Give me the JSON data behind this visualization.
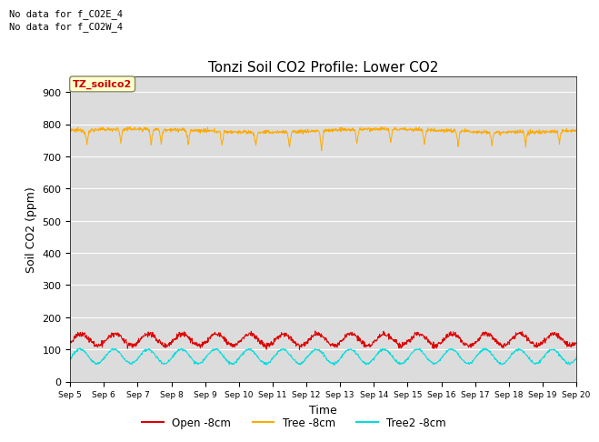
{
  "title": "Tonzi Soil CO2 Profile: Lower CO2",
  "xlabel": "Time",
  "ylabel": "Soil CO2 (ppm)",
  "ylim": [
    0,
    950
  ],
  "yticks": [
    0,
    100,
    200,
    300,
    400,
    500,
    600,
    700,
    800,
    900
  ],
  "xtick_labels": [
    "Sep 5",
    "Sep 6",
    "Sep 7",
    "Sep 8",
    "Sep 9",
    "Sep 10",
    "Sep 11",
    "Sep 12",
    "Sep 13",
    "Sep 14",
    "Sep 15",
    "Sep 16",
    "Sep 17",
    "Sep 18",
    "Sep 19",
    "Sep 20"
  ],
  "no_data_text": [
    "No data for f_CO2E_4",
    "No data for f_CO2W_4"
  ],
  "legend_box_text": "TZ_soilco2",
  "legend_entries": [
    "Open -8cm",
    "Tree -8cm",
    "Tree2 -8cm"
  ],
  "open_color": "#dd0000",
  "tree_color": "#ffaa00",
  "tree2_color": "#00dddd",
  "bg_color": "#dcdcdc",
  "grid_color": "#ffffff",
  "n_days": 15,
  "n_points_per_day": 96,
  "tree_base": 780,
  "open_base": 130,
  "open_amp": 18,
  "tree2_base": 78,
  "tree2_amp": 22,
  "title_fontsize": 11,
  "label_fontsize": 9,
  "tick_fontsize": 8
}
